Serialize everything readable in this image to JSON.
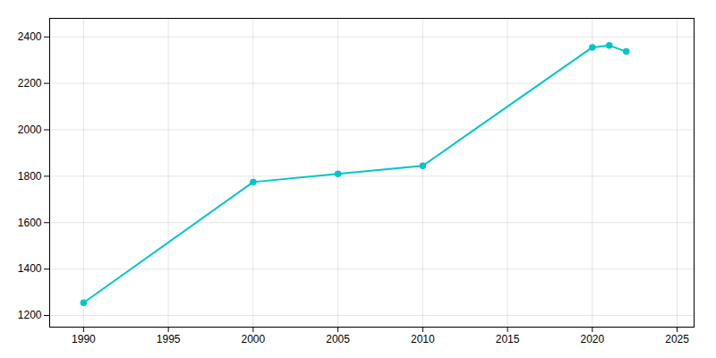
{
  "chart_data": {
    "type": "line",
    "x": [
      1990,
      2000,
      2005,
      2010,
      2020,
      2021,
      2022
    ],
    "values": [
      1255,
      1775,
      1810,
      1845,
      2355,
      2363,
      2337
    ],
    "color": "#00C5C8",
    "marker": "circle",
    "xlim": [
      1988,
      2026
    ],
    "ylim": [
      1150,
      2480
    ],
    "xticks": [
      1990,
      1995,
      2000,
      2005,
      2010,
      2015,
      2020,
      2025
    ],
    "yticks": [
      1200,
      1400,
      1600,
      1800,
      2000,
      2200,
      2400
    ],
    "grid": true
  }
}
